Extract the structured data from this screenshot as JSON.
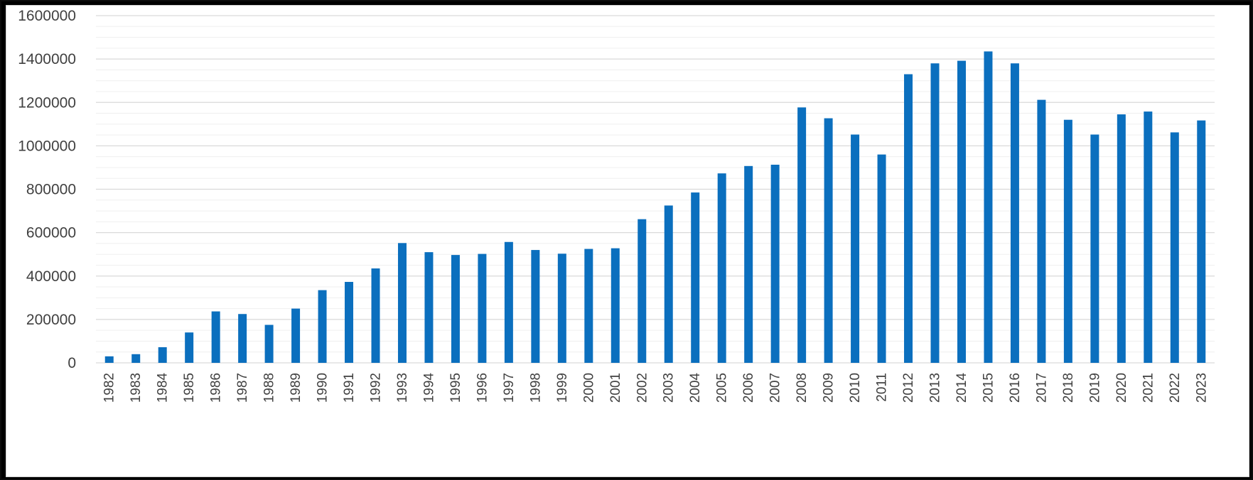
{
  "colors": {
    "bar": "#0b6fbe",
    "gridline": "#d9d9d9",
    "minor_gridline": "#efefef",
    "axis_text": "#404040",
    "background": "#ffffff",
    "frame": "#000000"
  },
  "chart_data": {
    "type": "bar",
    "title": "",
    "xlabel": "",
    "ylabel": "",
    "ylim": [
      0,
      1600000
    ],
    "y_ticks": [
      0,
      200000,
      400000,
      600000,
      800000,
      1000000,
      1200000,
      1400000,
      1600000
    ],
    "y_tick_labels": [
      "0",
      "200000",
      "400000",
      "600000",
      "800000",
      "1000000",
      "1200000",
      "1400000",
      "1600000"
    ],
    "grid": true,
    "legend": "none",
    "categories": [
      "1982",
      "1983",
      "1984",
      "1985",
      "1986",
      "1987",
      "1988",
      "1989",
      "1990",
      "1991",
      "1992",
      "1993",
      "1994",
      "1995",
      "1996",
      "1997",
      "1998",
      "1999",
      "2000",
      "2001",
      "2002",
      "2003",
      "2004",
      "2005",
      "2006",
      "2007",
      "2008",
      "2009",
      "2010",
      "2011",
      "2012",
      "2013",
      "2014",
      "2015",
      "2016",
      "2017",
      "2018",
      "2019",
      "2020",
      "2021",
      "2022",
      "2023"
    ],
    "values": [
      30000,
      40000,
      72000,
      140000,
      237000,
      225000,
      175000,
      250000,
      335000,
      373000,
      435000,
      552000,
      510000,
      497000,
      502000,
      557000,
      520000,
      503000,
      525000,
      528000,
      662000,
      725000,
      785000,
      873000,
      907000,
      913000,
      1177000,
      1127000,
      1052000,
      960000,
      1330000,
      1380000,
      1392000,
      1435000,
      1380000,
      1212000,
      1120000,
      1052000,
      1145000,
      1158000,
      1062000,
      1117000
    ]
  }
}
